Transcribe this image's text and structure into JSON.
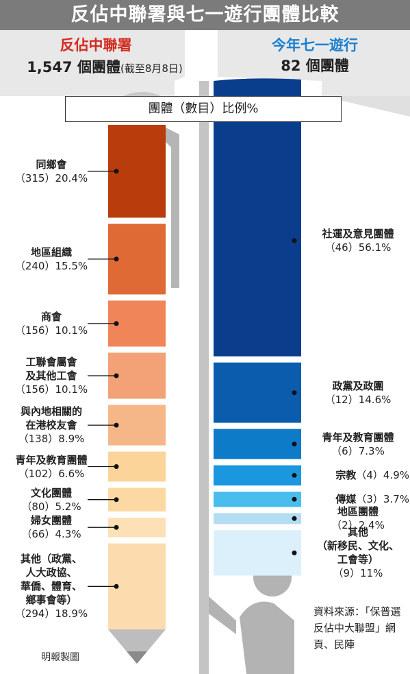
{
  "title": "反佔中聯署與七一遊行團體比較",
  "left_header": {
    "name": "反佔中聯署",
    "count": "1,547 個團體",
    "note": "(截至8月8日)"
  },
  "right_header": {
    "name": "今年七一遊行",
    "count": "82 個團體"
  },
  "legend_box": "團體（數目）比例%",
  "credit": "明報製圖",
  "source": "資料來源：「保普選反佔中大聯盟」網頁、民陣",
  "colors": {
    "title_bg": "#7b7b7b",
    "left_accent": "#d42a1e",
    "right_accent": "#1a7fd0"
  },
  "chart_data": [
    {
      "type": "bar",
      "title": "反佔中聯署",
      "unit": "%",
      "series": [
        {
          "name": "同鄉會",
          "label_lines": [
            "同鄉會"
          ],
          "count": 315,
          "value": 20.4,
          "color": "#b93c0c"
        },
        {
          "name": "地區組織",
          "label_lines": [
            "地區組織"
          ],
          "count": 240,
          "value": 15.5,
          "color": "#df6a36"
        },
        {
          "name": "商會",
          "label_lines": [
            "商會"
          ],
          "count": 156,
          "value": 10.1,
          "color": "#f0855a"
        },
        {
          "name": "工聯會屬會及其他工會",
          "label_lines": [
            "工聯會屬會",
            "及其他工會"
          ],
          "count": 156,
          "value": 10.1,
          "color": "#f2a276"
        },
        {
          "name": "與內地相關的在港校友會",
          "label_lines": [
            "與內地相關的",
            "在港校友會"
          ],
          "count": 138,
          "value": 8.9,
          "color": "#f6b788"
        },
        {
          "name": "青年及教育團體",
          "label_lines": [
            "青年及教育團體"
          ],
          "count": 102,
          "value": 6.6,
          "color": "#fbd49a"
        },
        {
          "name": "文化團體",
          "label_lines": [
            "文化團體"
          ],
          "count": 80,
          "value": 5.2,
          "color": "#fcd9a2"
        },
        {
          "name": "婦女團體",
          "label_lines": [
            "婦女團體"
          ],
          "count": 66,
          "value": 4.3,
          "color": "#fde0b6"
        },
        {
          "name": "其他（政黨、人大政協、華僑、體育、鄉事會等）",
          "label_lines": [
            "其他（政黨、",
            "人大政協、",
            "華僑、體育、",
            "鄉事會等）"
          ],
          "count": 294,
          "value": 18.9,
          "color": "#fcdcae"
        }
      ]
    },
    {
      "type": "bar",
      "title": "今年七一遊行",
      "unit": "%",
      "series": [
        {
          "name": "社運及意見團體",
          "label_lines": [
            "社運及意見團體"
          ],
          "count": 46,
          "value": 56.1,
          "color": "#0a3e8c"
        },
        {
          "name": "政黨及政團",
          "label_lines": [
            "政黨及政團"
          ],
          "count": 12,
          "value": 14.6,
          "color": "#0b5cad"
        },
        {
          "name": "青年及教育團體",
          "label_lines": [
            "青年及教育團體"
          ],
          "count": 6,
          "value": 7.3,
          "color": "#0d7bc8"
        },
        {
          "name": "宗教",
          "label_lines": [
            "宗教"
          ],
          "count": 4,
          "value": 4.9,
          "color": "#1a97df"
        },
        {
          "name": "傳媒",
          "label_lines": [
            "傳媒"
          ],
          "count": 3,
          "value": 3.7,
          "color": "#49bdee"
        },
        {
          "name": "地區團體",
          "label_lines": [
            "地區團體"
          ],
          "count": 2,
          "value": 2.4,
          "color": "#b4ddf4"
        },
        {
          "name": "其他（新移民、文化、工會等）",
          "label_lines": [
            "其他",
            "（新移民、文化、",
            "工會等）"
          ],
          "count": 9,
          "value": 11,
          "color": "#dcf0fb"
        }
      ]
    }
  ]
}
